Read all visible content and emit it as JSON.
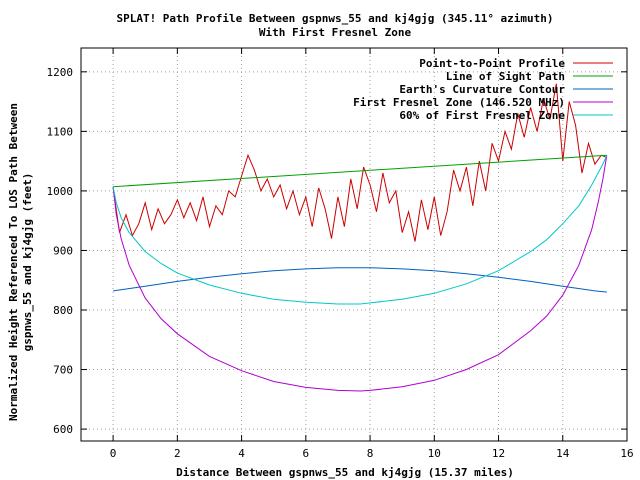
{
  "chart_data": {
    "type": "line",
    "title": "SPLAT! Path Profile Between gspnws_55 and kj4gjg (345.11° azimuth)",
    "subtitle": "With First Fresnel Zone",
    "xlabel": "Distance Between gspnws_55 and kj4gjg (15.37 miles)",
    "ylabel_line1": "Normalized Height Referenced To LOS Path Between",
    "ylabel_line2": "gspnws_55 and kj4gjg (feet)",
    "xlim": [
      -1,
      16
    ],
    "ylim": [
      580,
      1240
    ],
    "x_ticks": [
      0,
      2,
      4,
      6,
      8,
      10,
      12,
      14,
      16
    ],
    "y_ticks": [
      600,
      700,
      800,
      900,
      1000,
      1100,
      1200
    ],
    "grid": true,
    "legend_position": "top-right",
    "series": [
      {
        "name": "Point-to-Point Profile",
        "color": "#cc0000",
        "x": [
          0,
          0.2,
          0.4,
          0.6,
          0.8,
          1.0,
          1.2,
          1.4,
          1.6,
          1.8,
          2.0,
          2.2,
          2.4,
          2.6,
          2.8,
          3.0,
          3.2,
          3.4,
          3.6,
          3.8,
          4.0,
          4.2,
          4.4,
          4.6,
          4.8,
          5.0,
          5.2,
          5.4,
          5.6,
          5.8,
          6.0,
          6.2,
          6.4,
          6.6,
          6.8,
          7.0,
          7.2,
          7.4,
          7.6,
          7.8,
          8.0,
          8.2,
          8.4,
          8.6,
          8.8,
          9.0,
          9.2,
          9.4,
          9.6,
          9.8,
          10.0,
          10.2,
          10.4,
          10.6,
          10.8,
          11.0,
          11.2,
          11.4,
          11.6,
          11.8,
          12.0,
          12.2,
          12.4,
          12.6,
          12.8,
          13.0,
          13.2,
          13.4,
          13.6,
          13.8,
          14.0,
          14.2,
          14.4,
          14.6,
          14.8,
          15.0,
          15.2,
          15.37
        ],
        "values": [
          1006,
          930,
          960,
          925,
          945,
          980,
          935,
          970,
          945,
          960,
          985,
          955,
          980,
          950,
          990,
          940,
          975,
          960,
          1000,
          990,
          1025,
          1060,
          1035,
          1000,
          1020,
          990,
          1010,
          970,
          1000,
          960,
          990,
          940,
          1005,
          970,
          920,
          990,
          940,
          1020,
          970,
          1040,
          1010,
          965,
          1030,
          980,
          1000,
          930,
          965,
          915,
          985,
          935,
          990,
          925,
          965,
          1035,
          1000,
          1040,
          975,
          1050,
          1000,
          1080,
          1050,
          1100,
          1070,
          1130,
          1090,
          1140,
          1100,
          1155,
          1120,
          1180,
          1050,
          1150,
          1110,
          1030,
          1080,
          1045,
          1060,
          1056
        ]
      },
      {
        "name": "Line of Sight Path",
        "color": "#00a000",
        "x": [
          0,
          15.37
        ],
        "values": [
          1007,
          1060
        ]
      },
      {
        "name": "Earth's Curvature Contour",
        "color": "#0060c0",
        "x": [
          0,
          1,
          2,
          3,
          4,
          5,
          6,
          7,
          8,
          9,
          10,
          11,
          12,
          13,
          14,
          15,
          15.37
        ],
        "values": [
          832,
          840,
          848,
          855,
          861,
          866,
          869,
          871,
          871,
          869,
          866,
          861,
          855,
          848,
          840,
          832,
          830
        ]
      },
      {
        "name": "First Fresnel Zone (146.520 MHz)",
        "color": "#b000d0",
        "x": [
          0,
          0.1,
          0.25,
          0.5,
          1,
          1.5,
          2,
          3,
          4,
          5,
          6,
          7,
          7.7,
          8,
          9,
          10,
          11,
          12,
          13,
          13.5,
          14,
          14.5,
          14.9,
          15.1,
          15.25,
          15.37
        ],
        "values": [
          1007,
          960,
          920,
          875,
          820,
          785,
          760,
          722,
          698,
          680,
          670,
          665,
          664,
          665,
          671,
          682,
          700,
          725,
          765,
          790,
          825,
          875,
          935,
          980,
          1020,
          1060
        ]
      },
      {
        "name": "60% of First Fresnel Zone",
        "color": "#00c8c8",
        "x": [
          0,
          0.1,
          0.25,
          0.5,
          1,
          1.5,
          2,
          3,
          4,
          5,
          6,
          7,
          7.7,
          8,
          9,
          10,
          11,
          12,
          13,
          13.5,
          14,
          14.5,
          14.9,
          15.1,
          15.25,
          15.37
        ],
        "values": [
          1007,
          980,
          955,
          930,
          898,
          878,
          862,
          842,
          828,
          818,
          813,
          810,
          810,
          812,
          818,
          828,
          844,
          866,
          898,
          918,
          945,
          975,
          1010,
          1030,
          1045,
          1060
        ]
      }
    ]
  }
}
